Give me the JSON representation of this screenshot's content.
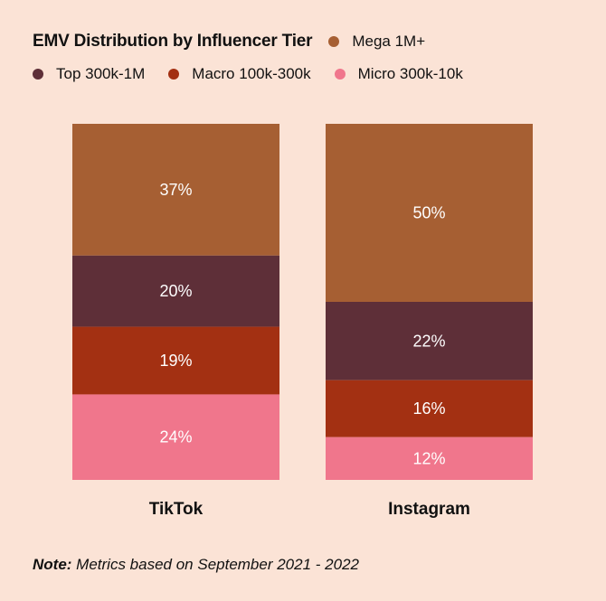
{
  "chart_data": {
    "type": "bar",
    "stacked": true,
    "title": "EMV Distribution by Influencer Tier",
    "categories": [
      "TikTok",
      "Instagram"
    ],
    "series": [
      {
        "name": "Mega 1M+",
        "color": "#a65f33",
        "values": [
          37,
          50
        ]
      },
      {
        "name": "Top 300k-1M",
        "color": "#5e2f38",
        "values": [
          20,
          22
        ]
      },
      {
        "name": "Macro 100k-300k",
        "color": "#a33012",
        "values": [
          19,
          16
        ]
      },
      {
        "name": "Micro 300k-10k",
        "color": "#f0768c",
        "values": [
          24,
          12
        ]
      }
    ],
    "data_labels": [
      [
        "37%",
        "50%"
      ],
      [
        "20%",
        "22%"
      ],
      [
        "19%",
        "16%"
      ],
      [
        "24%",
        "12%"
      ]
    ],
    "xlabel": "",
    "ylabel": "",
    "ylim": [
      0,
      100
    ],
    "grid": false,
    "legend_position": "top"
  },
  "note": {
    "prefix": "Note:",
    "text": " Metrics based on September 2021 - 2022"
  }
}
